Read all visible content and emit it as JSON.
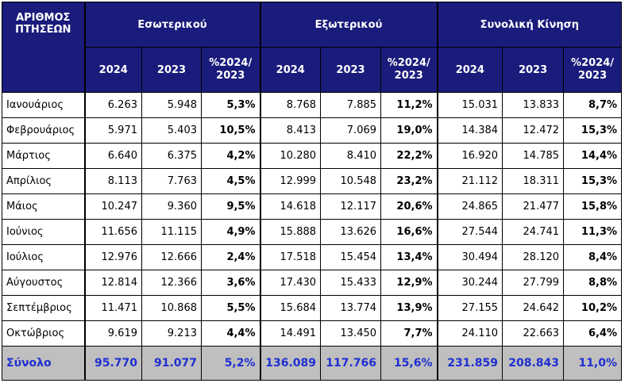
{
  "header": {
    "corner_label": "ΑΡΙΘΜΟΣ ΠΤΗΣΕΩΝ",
    "groups": [
      "Εσωτερικού",
      "Εξωτερικού",
      "Συνολική Κίνηση"
    ],
    "subcolumns": [
      "2024",
      "2023",
      "%2024/ 2023"
    ]
  },
  "rows": [
    {
      "month": "Ιανουάριος",
      "values": [
        "6.263",
        "5.948",
        "5,3%",
        "8.768",
        "7.885",
        "11,2%",
        "15.031",
        "13.833",
        "8,7%"
      ]
    },
    {
      "month": "Φεβρουάριος",
      "values": [
        "5.971",
        "5.403",
        "10,5%",
        "8.413",
        "7.069",
        "19,0%",
        "14.384",
        "12.472",
        "15,3%"
      ]
    },
    {
      "month": "Μάρτιος",
      "values": [
        "6.640",
        "6.375",
        "4,2%",
        "10.280",
        "8.410",
        "22,2%",
        "16.920",
        "14.785",
        "14,4%"
      ]
    },
    {
      "month": "Απρίλιος",
      "values": [
        "8.113",
        "7.763",
        "4,5%",
        "12.999",
        "10.548",
        "23,2%",
        "21.112",
        "18.311",
        "15,3%"
      ]
    },
    {
      "month": "Μάιος",
      "values": [
        "10.247",
        "9.360",
        "9,5%",
        "14.618",
        "12.117",
        "20,6%",
        "24.865",
        "21.477",
        "15,8%"
      ]
    },
    {
      "month": "Ιούνιος",
      "values": [
        "11.656",
        "11.115",
        "4,9%",
        "15.888",
        "13.626",
        "16,6%",
        "27.544",
        "24.741",
        "11,3%"
      ]
    },
    {
      "month": "Ιούλιος",
      "values": [
        "12.976",
        "12.666",
        "2,4%",
        "17.518",
        "15.454",
        "13,4%",
        "30.494",
        "28.120",
        "8,4%"
      ]
    },
    {
      "month": "Αύγουστος",
      "values": [
        "12.814",
        "12.366",
        "3,6%",
        "17.430",
        "15.433",
        "12,9%",
        "30.244",
        "27.799",
        "8,8%"
      ]
    },
    {
      "month": "Σεπτέμβριος",
      "values": [
        "11.471",
        "10.868",
        "5,5%",
        "15.684",
        "13.774",
        "13,9%",
        "27.155",
        "24.642",
        "10,2%"
      ]
    },
    {
      "month": "Οκτώβριος",
      "values": [
        "9.619",
        "9.213",
        "4,4%",
        "14.491",
        "13.450",
        "7,7%",
        "24.110",
        "22.663",
        "6,4%"
      ]
    }
  ],
  "total": {
    "label": "Σύνολο",
    "values": [
      "95.770",
      "91.077",
      "5,2%",
      "136.089",
      "117.766",
      "15,6%",
      "231.859",
      "208.843",
      "11,0%"
    ]
  },
  "colors": {
    "header_bg": "#1a1c7c",
    "header_text": "#ffffff",
    "total_bg": "#bfbfbf",
    "total_text": "#1f2fd0"
  }
}
